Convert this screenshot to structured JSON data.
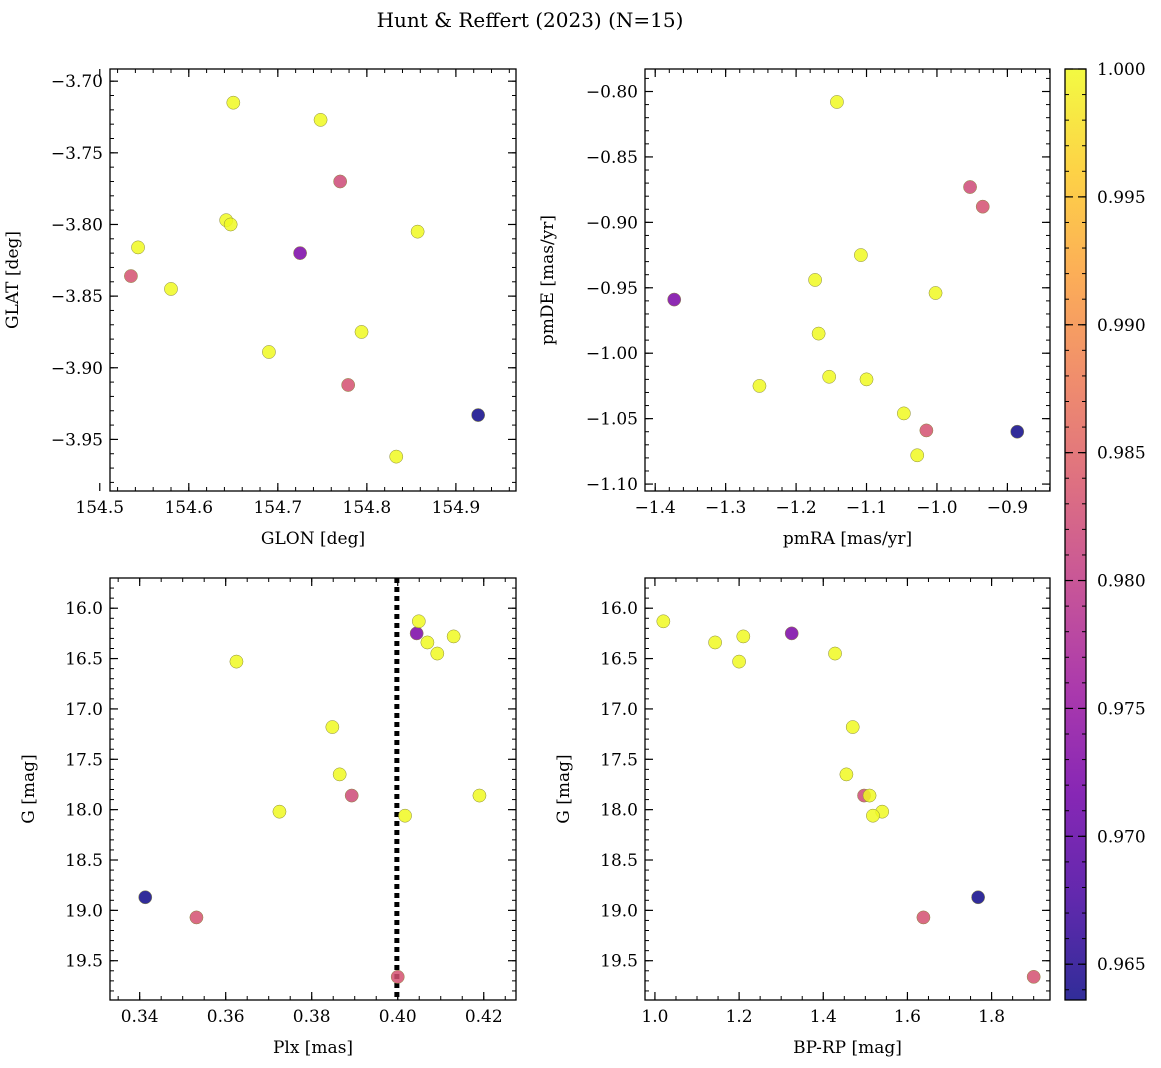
{
  "chart_data": {
    "title": "Hunt & Reffert (2023) (N=15)",
    "colorbar": {
      "min": 0.9636,
      "max": 1.0,
      "ticks": [
        0.965,
        0.97,
        0.975,
        0.98,
        0.985,
        0.99,
        0.995,
        1.0
      ],
      "tick_labels": [
        "0.965",
        "0.970",
        "0.975",
        "0.980",
        "0.985",
        "0.990",
        "0.995",
        "1.000"
      ],
      "colormap": "plasma",
      "colors": [
        "#0d0887",
        "#46039f",
        "#7201a8",
        "#9c179e",
        "#bd3786",
        "#d8576b",
        "#ed7953",
        "#fb9f3a",
        "#fdca26",
        "#f0f921"
      ]
    },
    "stars": [
      {
        "glon": 154.65,
        "glat": -3.715,
        "pmra": -1.142,
        "pmde": -0.808,
        "plx": 0.3625,
        "gmag": 16.53,
        "bprp": 1.2,
        "prob": 1.0
      },
      {
        "glon": 154.748,
        "glat": -3.727,
        "pmra": -1.108,
        "pmde": -0.925,
        "plx": 0.3848,
        "gmag": 17.18,
        "bprp": 1.47,
        "prob": 1.0
      },
      {
        "glon": 154.77,
        "glat": -3.77,
        "pmra": -0.953,
        "pmde": -0.873,
        "plx": 0.3893,
        "gmag": 17.86,
        "bprp": 1.497,
        "prob": 0.982
      },
      {
        "glon": 154.642,
        "glat": -3.797,
        "pmra": -1.173,
        "pmde": -0.944,
        "plx": 0.4049,
        "gmag": 16.13,
        "bprp": 1.02,
        "prob": 1.0
      },
      {
        "glon": 154.647,
        "glat": -3.8,
        "pmra": -1.168,
        "pmde": -0.985,
        "plx": 0.4092,
        "gmag": 16.45,
        "bprp": 1.428,
        "prob": 1.0
      },
      {
        "glon": 154.857,
        "glat": -3.805,
        "pmra": -1.002,
        "pmde": -0.954,
        "plx": 0.419,
        "gmag": 17.86,
        "bprp": 1.51,
        "prob": 1.0
      },
      {
        "glon": 154.543,
        "glat": -3.816,
        "pmra": -1.252,
        "pmde": -1.025,
        "plx": 0.4069,
        "gmag": 16.34,
        "bprp": 1.143,
        "prob": 1.0
      },
      {
        "glon": 154.725,
        "glat": -3.82,
        "pmra": -1.373,
        "pmde": -0.959,
        "plx": 0.4044,
        "gmag": 16.25,
        "bprp": 1.325,
        "prob": 0.9725
      },
      {
        "glon": 154.535,
        "glat": -3.836,
        "pmra": -0.935,
        "pmde": -0.888,
        "plx": 0.3532,
        "gmag": 19.07,
        "bprp": 1.638,
        "prob": 0.983
      },
      {
        "glon": 154.58,
        "glat": -3.845,
        "pmra": -1.153,
        "pmde": -1.018,
        "plx": 0.413,
        "gmag": 16.28,
        "bprp": 1.21,
        "prob": 1.0
      },
      {
        "glon": 154.794,
        "glat": -3.875,
        "pmra": -1.1,
        "pmde": -1.02,
        "plx": 0.3865,
        "gmag": 17.65,
        "bprp": 1.455,
        "prob": 1.0
      },
      {
        "glon": 154.69,
        "glat": -3.889,
        "pmra": -1.047,
        "pmde": -1.046,
        "plx": 0.3725,
        "gmag": 18.02,
        "bprp": 1.54,
        "prob": 1.0
      },
      {
        "glon": 154.779,
        "glat": -3.912,
        "pmra": -1.015,
        "pmde": -1.059,
        "plx": 0.4,
        "gmag": 19.66,
        "bprp": 1.9,
        "prob": 0.983
      },
      {
        "glon": 154.925,
        "glat": -3.933,
        "pmra": -0.886,
        "pmde": -1.06,
        "plx": 0.3413,
        "gmag": 18.87,
        "bprp": 1.768,
        "prob": 0.9637
      },
      {
        "glon": 154.833,
        "glat": -3.962,
        "pmra": -1.028,
        "pmde": -1.078,
        "plx": 0.4017,
        "gmag": 18.06,
        "bprp": 1.518,
        "prob": 1.0
      }
    ],
    "panels": [
      {
        "type": "scatter",
        "name": "position",
        "x": "glon",
        "y": "glat",
        "xlabel": "GLON [deg]",
        "ylabel": "GLAT [deg]",
        "xlim": [
          154.5115,
          154.9675
        ],
        "ylim": [
          -3.986,
          -3.6915
        ],
        "y_inverted": false,
        "xticks": [
          154.5,
          154.6,
          154.7,
          154.8,
          154.9
        ],
        "xtick_labels": [
          "154.5",
          "154.6",
          "154.7",
          "154.8",
          "154.9"
        ],
        "yticks": [
          -3.7,
          -3.75,
          -3.8,
          -3.85,
          -3.9,
          -3.95
        ],
        "ytick_labels": [
          "−3.70",
          "−3.75",
          "−3.80",
          "−3.85",
          "−3.90",
          "−3.95"
        ],
        "x_minor": 0.02,
        "y_minor": 0.01
      },
      {
        "type": "scatter",
        "name": "proper-motion",
        "x": "pmra",
        "y": "pmde",
        "xlabel": "pmRA [mas/yr]",
        "ylabel": "pmDE [mas/yr]",
        "xlim": [
          -1.4145,
          -0.8395
        ],
        "ylim": [
          -1.1053,
          -0.7828
        ],
        "y_inverted": false,
        "xticks": [
          -1.4,
          -1.3,
          -1.2,
          -1.1,
          -1.0,
          -0.9
        ],
        "xtick_labels": [
          "−1.4",
          "−1.3",
          "−1.2",
          "−1.1",
          "−1.0",
          "−0.9"
        ],
        "yticks": [
          -0.8,
          -0.85,
          -0.9,
          -0.95,
          -1.0,
          -1.05,
          -1.1
        ],
        "ytick_labels": [
          "−0.80",
          "−0.85",
          "−0.90",
          "−0.95",
          "−1.00",
          "−1.05",
          "−1.10"
        ],
        "x_minor": 0.02,
        "y_minor": 0.01
      },
      {
        "type": "scatter",
        "name": "parallax-cmd",
        "x": "plx",
        "y": "gmag",
        "xlabel": "Plx [mas]",
        "ylabel": "G [mag]",
        "xlim": [
          0.3331,
          0.4275
        ],
        "ylim": [
          19.89,
          15.7
        ],
        "y_inverted": true,
        "xticks": [
          0.34,
          0.36,
          0.38,
          0.4,
          0.42
        ],
        "xtick_labels": [
          "0.34",
          "0.36",
          "0.38",
          "0.40",
          "0.42"
        ],
        "yticks": [
          16.0,
          16.5,
          17.0,
          17.5,
          18.0,
          18.5,
          19.0,
          19.5
        ],
        "ytick_labels": [
          "16.0",
          "16.5",
          "17.0",
          "17.5",
          "18.0",
          "18.5",
          "19.0",
          "19.5"
        ],
        "x_minor": 0.005,
        "y_minor": 0.1,
        "vline": 0.3998
      },
      {
        "type": "scatter",
        "name": "color-magnitude",
        "x": "bprp",
        "y": "gmag",
        "xlabel": "BP-RP [mag]",
        "ylabel": "G [mag]",
        "xlim": [
          0.9764,
          1.9388
        ],
        "ylim": [
          19.89,
          15.7
        ],
        "y_inverted": true,
        "xticks": [
          1.0,
          1.2,
          1.4,
          1.6,
          1.8
        ],
        "xtick_labels": [
          "1.0",
          "1.2",
          "1.4",
          "1.6",
          "1.8"
        ],
        "yticks": [
          16.0,
          16.5,
          17.0,
          17.5,
          18.0,
          18.5,
          19.0,
          19.5
        ],
        "ytick_labels": [
          "16.0",
          "16.5",
          "17.0",
          "17.5",
          "18.0",
          "18.5",
          "19.0",
          "19.5"
        ],
        "x_minor": 0.05,
        "y_minor": 0.1
      }
    ]
  }
}
